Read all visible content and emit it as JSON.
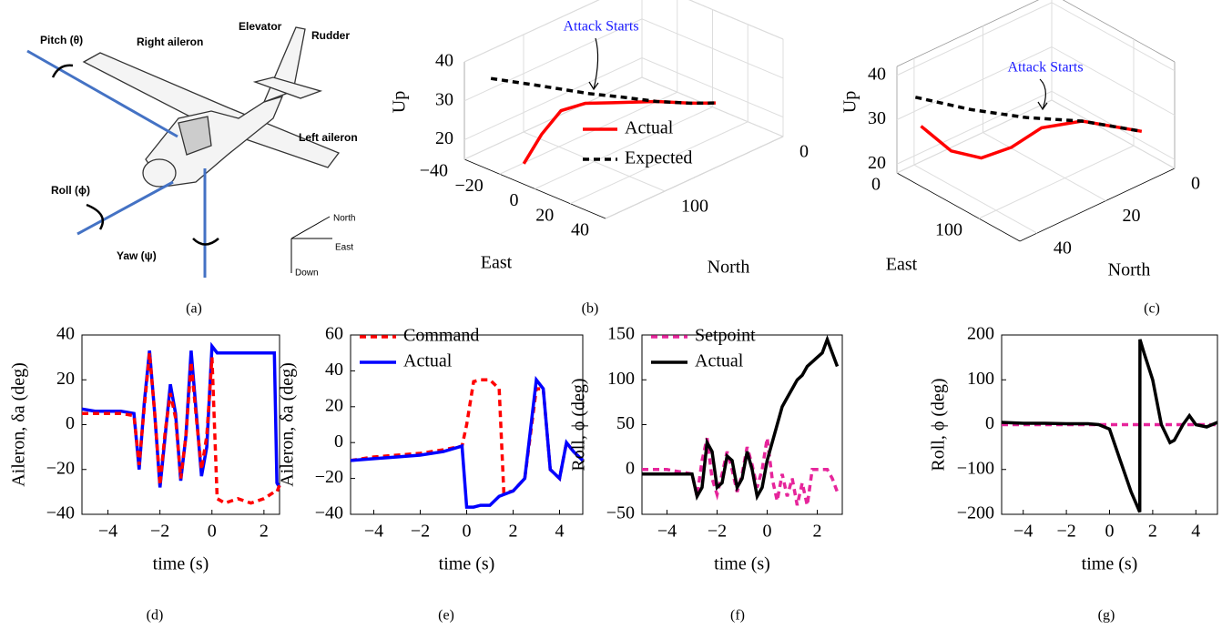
{
  "diagram": {
    "labels": [
      "Pitch (θ)",
      "Right aileron",
      "Elevator",
      "Rudder",
      "Left aileron",
      "Roll (ϕ)",
      "Yaw (ψ)",
      "North",
      "East",
      "Down"
    ],
    "caption": "(a)"
  },
  "chart_data": [
    {
      "type": "line3d",
      "caption": "(b)",
      "xlabel": "East",
      "ylabel": "North",
      "zlabel": "Up",
      "xlim": [
        -40,
        40
      ],
      "ylim": [
        0,
        150
      ],
      "zlim": [
        15,
        40
      ],
      "xticks": [
        {
          "value": -40,
          "label": "−40"
        },
        {
          "value": -20,
          "label": "−20"
        },
        0,
        20,
        40
      ],
      "yticks": [
        0,
        100
      ],
      "zticks": [
        20,
        30,
        40
      ],
      "annotations": [
        {
          "text": "Attack Starts"
        }
      ],
      "legend": "lower right",
      "series": [
        {
          "name": "Actual",
          "color": "#ff0000",
          "style": "solid",
          "x": [
            -7,
            -3,
            0,
            5,
            10,
            20,
            30,
            36
          ],
          "y": [
            149,
            140,
            128,
            115,
            100,
            77,
            63,
            51
          ],
          "z": [
            20,
            27,
            32,
            33,
            32,
            31,
            30.5,
            30
          ]
        },
        {
          "name": "Expected",
          "color": "#000000",
          "style": "dashed",
          "x": [
            -29,
            -15,
            0,
            10,
            20,
            30,
            36
          ],
          "y": [
            144,
            124,
            104,
            90,
            77,
            63,
            51
          ],
          "z": [
            37,
            35,
            33,
            32,
            31,
            30.5,
            30
          ]
        }
      ]
    },
    {
      "type": "line3d",
      "caption": "(c)",
      "xlabel": "East",
      "ylabel": "North",
      "zlabel": "Up",
      "xlim": [
        0,
        150
      ],
      "ylim": [
        0,
        45
      ],
      "zlim": [
        18,
        42
      ],
      "xticks": [
        0,
        100
      ],
      "yticks": [
        0,
        20,
        40
      ],
      "zticks": [
        20,
        30,
        40
      ],
      "annotations": [
        {
          "text": "Attack Starts"
        }
      ],
      "series": [
        {
          "color": "#ff0000",
          "style": "solid",
          "x": [
            0,
            20,
            40,
            60,
            80,
            100,
            135
          ],
          "y": [
            38,
            34,
            30,
            26,
            22,
            15,
            6
          ],
          "z": [
            26,
            21,
            20,
            23,
            28,
            29,
            27
          ]
        },
        {
          "color": "#000000",
          "style": "dashed",
          "x": [
            10,
            40,
            70,
            100,
            135
          ],
          "y": [
            42,
            33,
            24,
            15,
            6
          ],
          "z": [
            35,
            32,
            30,
            29,
            27
          ]
        }
      ]
    },
    {
      "type": "line",
      "caption": "(d)",
      "xlabel": "time (s)",
      "ylabel": "Aileron, δa (deg)",
      "xlim": [
        -5,
        2.6
      ],
      "ylim": [
        -40,
        40
      ],
      "xticks": [
        {
          "value": -4,
          "label": "−4"
        },
        {
          "value": -2,
          "label": "−2"
        },
        0,
        2
      ],
      "yticks": [
        {
          "value": -40,
          "label": "−40"
        },
        {
          "value": -20,
          "label": "−20"
        },
        0,
        20,
        40
      ],
      "series": [
        {
          "color": "#0000ff",
          "style": "solid",
          "x": [
            -5,
            -4.5,
            -4,
            -3.5,
            -3,
            -2.8,
            -2.6,
            -2.4,
            -2.2,
            -2,
            -1.8,
            -1.6,
            -1.4,
            -1.2,
            -1,
            -0.8,
            -0.6,
            -0.4,
            -0.2,
            0,
            0.2,
            0.5,
            1,
            1.5,
            2,
            2.4,
            2.5,
            2.6
          ],
          "values": [
            7,
            6,
            6,
            6,
            5,
            -20,
            10,
            33,
            5,
            -28,
            -5,
            18,
            5,
            -25,
            -5,
            33,
            5,
            -23,
            -10,
            35,
            32,
            32,
            32,
            32,
            32,
            32,
            -26,
            -28
          ]
        },
        {
          "color": "#ff0000",
          "style": "dashed",
          "x": [
            -5,
            -4.5,
            -4,
            -3.5,
            -3,
            -2.8,
            -2.6,
            -2.4,
            -2.2,
            -2,
            -1.8,
            -1.6,
            -1.4,
            -1.2,
            -1,
            -0.8,
            -0.6,
            -0.4,
            -0.2,
            0,
            0.2,
            0.5,
            1,
            1.5,
            2,
            2.4,
            2.5,
            2.6
          ],
          "values": [
            5,
            5,
            5,
            5,
            4,
            -18,
            8,
            32,
            5,
            -27,
            -3,
            14,
            3,
            -24,
            -5,
            28,
            3,
            -20,
            -5,
            30,
            -33,
            -35,
            -33,
            -35,
            -33,
            -30,
            -30,
            -27
          ]
        }
      ]
    },
    {
      "type": "line",
      "caption": "(e)",
      "xlabel": "time (s)",
      "ylabel": "Aileron, δa (deg)",
      "xlim": [
        -5,
        5
      ],
      "ylim": [
        -40,
        60
      ],
      "legend": "upper left",
      "xticks": [
        {
          "value": -4,
          "label": "−4"
        },
        {
          "value": -2,
          "label": "−2"
        },
        0,
        2,
        4
      ],
      "yticks": [
        {
          "value": -40,
          "label": "−40"
        },
        {
          "value": -20,
          "label": "−20"
        },
        0,
        20,
        40,
        60
      ],
      "series": [
        {
          "name": "Command",
          "color": "#ff0000",
          "style": "dashed",
          "x": [
            -5,
            -4,
            -3,
            -2,
            -1,
            -0.2,
            0,
            0.3,
            0.6,
            1,
            1.4,
            1.6,
            2,
            2.5,
            3,
            3.3,
            3.6,
            4,
            4.3,
            4.6,
            5
          ],
          "values": [
            -10,
            -8,
            -7,
            -6,
            -4,
            -2,
            10,
            34,
            35,
            35,
            30,
            -28,
            -27,
            -20,
            30,
            30,
            -15,
            -20,
            0,
            -5,
            -10
          ]
        },
        {
          "name": "Actual",
          "color": "#0000ff",
          "style": "solid",
          "x": [
            -5,
            -4,
            -3,
            -2,
            -1,
            -0.2,
            0,
            0.3,
            0.6,
            1,
            1.4,
            1.6,
            2,
            2.5,
            3,
            3.3,
            3.6,
            4,
            4.3,
            4.6,
            5
          ],
          "values": [
            -10,
            -9,
            -8,
            -7,
            -5,
            -2,
            -36,
            -36,
            -35,
            -35,
            -30,
            -29,
            -27,
            -20,
            35,
            30,
            -15,
            -20,
            0,
            -5,
            -10
          ]
        }
      ]
    },
    {
      "type": "line",
      "caption": "(f)",
      "xlabel": "time (s)",
      "ylabel": "Roll, ϕ (deg)",
      "xlim": [
        -5,
        3
      ],
      "ylim": [
        -50,
        150
      ],
      "legend": "upper left",
      "xticks": [
        {
          "value": -4,
          "label": "−4"
        },
        {
          "value": -2,
          "label": "−2"
        },
        0,
        2
      ],
      "yticks": [
        {
          "value": -50,
          "label": "−50"
        },
        0,
        50,
        100,
        150
      ],
      "series": [
        {
          "name": "Setpoint",
          "color": "#e6259b",
          "style": "dashed",
          "x": [
            -5,
            -4,
            -3,
            -2.8,
            -2.6,
            -2.4,
            -2.2,
            -2,
            -1.8,
            -1.6,
            -1.4,
            -1.2,
            -1,
            -0.8,
            -0.6,
            -0.4,
            -0.2,
            0,
            0.2,
            0.4,
            0.6,
            0.8,
            1,
            1.2,
            1.4,
            1.6,
            1.8,
            2,
            2.2,
            2.4,
            2.6,
            2.8
          ],
          "values": [
            0,
            0,
            -5,
            -30,
            10,
            35,
            -10,
            -28,
            -5,
            20,
            0,
            -25,
            -5,
            25,
            5,
            -20,
            0,
            35,
            -10,
            -35,
            -5,
            -30,
            -10,
            -40,
            -15,
            -40,
            0,
            0,
            0,
            0,
            -10,
            -25
          ]
        },
        {
          "name": "Actual",
          "color": "#000000",
          "style": "solid",
          "x": [
            -5,
            -4,
            -3,
            -2.8,
            -2.6,
            -2.4,
            -2.2,
            -2,
            -1.8,
            -1.6,
            -1.4,
            -1.2,
            -1,
            -0.8,
            -0.6,
            -0.4,
            -0.2,
            0,
            0.2,
            0.4,
            0.6,
            0.8,
            1,
            1.2,
            1.4,
            1.6,
            1.8,
            2,
            2.2,
            2.4,
            2.6,
            2.8
          ],
          "values": [
            -5,
            -5,
            -5,
            -30,
            -20,
            30,
            20,
            -20,
            -15,
            15,
            10,
            -20,
            -10,
            20,
            0,
            -30,
            -20,
            10,
            30,
            50,
            70,
            80,
            90,
            100,
            105,
            115,
            120,
            125,
            130,
            145,
            130,
            115
          ]
        }
      ]
    },
    {
      "type": "line",
      "caption": "(g)",
      "xlabel": "time (s)",
      "ylabel": "Roll, ϕ (deg)",
      "xlim": [
        -5,
        5
      ],
      "ylim": [
        -200,
        200
      ],
      "xticks": [
        {
          "value": -4,
          "label": "−4"
        },
        {
          "value": -2,
          "label": "−2"
        },
        0,
        2,
        4
      ],
      "yticks": [
        {
          "value": -200,
          "label": "−200"
        },
        {
          "value": -100,
          "label": "−100"
        },
        0,
        100,
        200
      ],
      "series": [
        {
          "color": "#e6259b",
          "style": "dashed",
          "x": [
            -5,
            5
          ],
          "values": [
            0,
            0
          ]
        },
        {
          "color": "#000000",
          "style": "solid",
          "x": [
            -5,
            -4,
            -3,
            -2,
            -1,
            -0.5,
            0,
            0.5,
            1,
            1.4,
            1.41,
            1.6,
            2,
            2.4,
            2.8,
            3,
            3.4,
            3.7,
            4,
            4.5,
            5
          ],
          "values": [
            5,
            3,
            3,
            2,
            2,
            0,
            -10,
            -80,
            -150,
            -195,
            190,
            160,
            100,
            0,
            -40,
            -35,
            0,
            20,
            0,
            -5,
            5
          ]
        }
      ]
    }
  ]
}
